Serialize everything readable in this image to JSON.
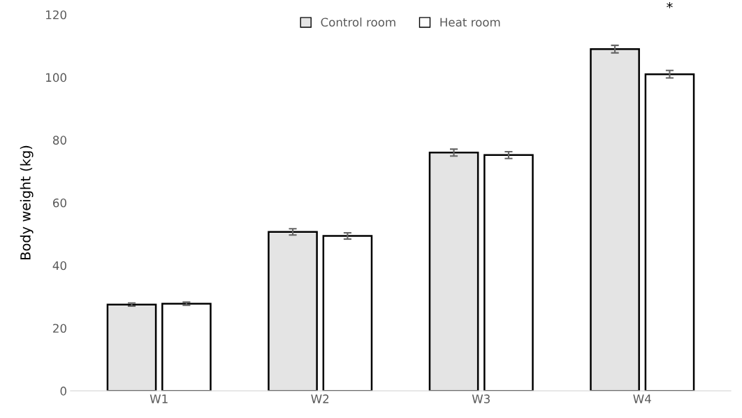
{
  "chart_data": {
    "type": "bar",
    "ylabel": "Body weight (kg)",
    "categories": [
      "W1",
      "W2",
      "W3",
      "W4"
    ],
    "series": [
      {
        "name": "Control room",
        "color": "#e4e4e4",
        "values": [
          27.5,
          50.7,
          76.0,
          109.0
        ],
        "errors": [
          0.5,
          1.0,
          1.1,
          1.2
        ]
      },
      {
        "name": "Heat room",
        "color": "#ffffff",
        "values": [
          27.8,
          49.4,
          75.2,
          101.0
        ],
        "errors": [
          0.5,
          1.0,
          1.1,
          1.2
        ]
      }
    ],
    "ylim": [
      0,
      120
    ],
    "yticks": [
      0,
      20,
      40,
      60,
      80,
      100,
      120
    ],
    "grid": false,
    "legend": "top",
    "annotations": [
      "*"
    ]
  }
}
